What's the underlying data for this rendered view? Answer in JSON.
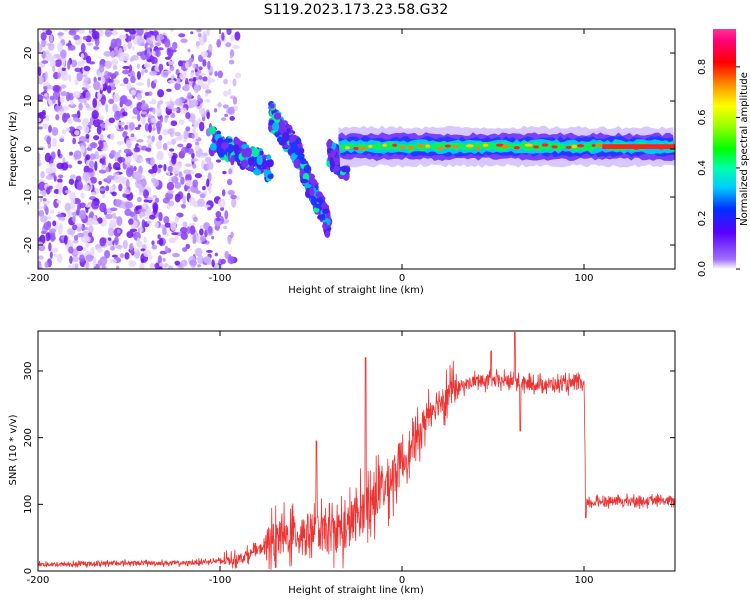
{
  "figure": {
    "title": "S119.2023.173.23.58.G32"
  },
  "chart_data": [
    {
      "type": "heatmap",
      "xlabel": "Height of straight line (km)",
      "ylabel": "Frequency (Hz)",
      "xlim": [
        -200,
        150
      ],
      "ylim": [
        -25,
        25
      ],
      "x_ticks": [
        -200,
        -100,
        0,
        100
      ],
      "x_tick_labels": [
        "-200",
        "-100",
        "0",
        "100"
      ],
      "y_ticks": [
        -20,
        -10,
        0,
        10,
        20
      ],
      "y_tick_labels": [
        "-20",
        "-10",
        "0",
        "10",
        "20"
      ],
      "colorbar": {
        "label": "Normalized spectral amplitude",
        "range": [
          0,
          0.95
        ],
        "ticks": [
          0,
          0.2,
          0.4,
          0.6,
          0.8
        ],
        "tick_labels": [
          "0.0",
          "0.2",
          "0.4",
          "0.6",
          "0.8"
        ],
        "colormap": "hsv-like (purple-blue-cyan-green-yellow-orange-red-magenta)"
      },
      "features": {
        "noise_region_x": [
          -200,
          -105
        ],
        "tone_track_x": [
          -35,
          150
        ],
        "tone_frequency_hz": 0.5,
        "transition_segments": [
          {
            "x": [
              -105,
              -72
            ],
            "freq": [
              2,
              -4
            ]
          },
          {
            "x": [
              -72,
              -55
            ],
            "freq": [
              7,
              -2
            ]
          },
          {
            "x": [
              -55,
              -40
            ],
            "freq": [
              -4,
              -16
            ]
          },
          {
            "x": [
              -40,
              -30
            ],
            "freq": [
              -1,
              -4
            ]
          }
        ]
      }
    },
    {
      "type": "line",
      "xlabel": "Height of straight line (km)",
      "ylabel": "SNR (10 * v/v)",
      "xlim": [
        -200,
        150
      ],
      "ylim": [
        0,
        360
      ],
      "x_ticks": [
        -200,
        -100,
        0,
        100
      ],
      "x_tick_labels": [
        "-200",
        "-100",
        "0",
        "100"
      ],
      "y_ticks": [
        0,
        100,
        200,
        300
      ],
      "y_tick_labels": [
        "0",
        "100",
        "200",
        "300"
      ],
      "color": "#ee3333",
      "series": [
        {
          "x": [
            -200,
            -180,
            -160,
            -140,
            -120,
            -100,
            -90,
            -80,
            -70,
            -60,
            -50,
            -40,
            -30,
            -22,
            -15,
            -10,
            -5,
            0,
            5,
            10,
            15,
            20,
            25,
            30,
            40,
            50,
            60,
            70,
            80,
            90,
            100,
            101,
            110,
            120,
            130,
            140,
            150
          ],
          "y": [
            10,
            10,
            12,
            12,
            12,
            15,
            18,
            30,
            45,
            55,
            60,
            55,
            65,
            90,
            110,
            125,
            145,
            165,
            180,
            210,
            240,
            255,
            265,
            275,
            285,
            285,
            285,
            280,
            280,
            280,
            280,
            100,
            105,
            105,
            105,
            105,
            105
          ]
        }
      ],
      "peaks": [
        {
          "x": -47,
          "y": 195
        },
        {
          "x": -20,
          "y": 320
        },
        {
          "x": 62,
          "y": 358
        },
        {
          "x": 49,
          "y": 330
        }
      ],
      "dips": [
        {
          "x": 65,
          "y": 210
        },
        {
          "x": 101,
          "y": 80
        }
      ]
    }
  ],
  "colors": {
    "line": "#ee3333",
    "axis": "#000000",
    "noise": "#8833ee"
  }
}
